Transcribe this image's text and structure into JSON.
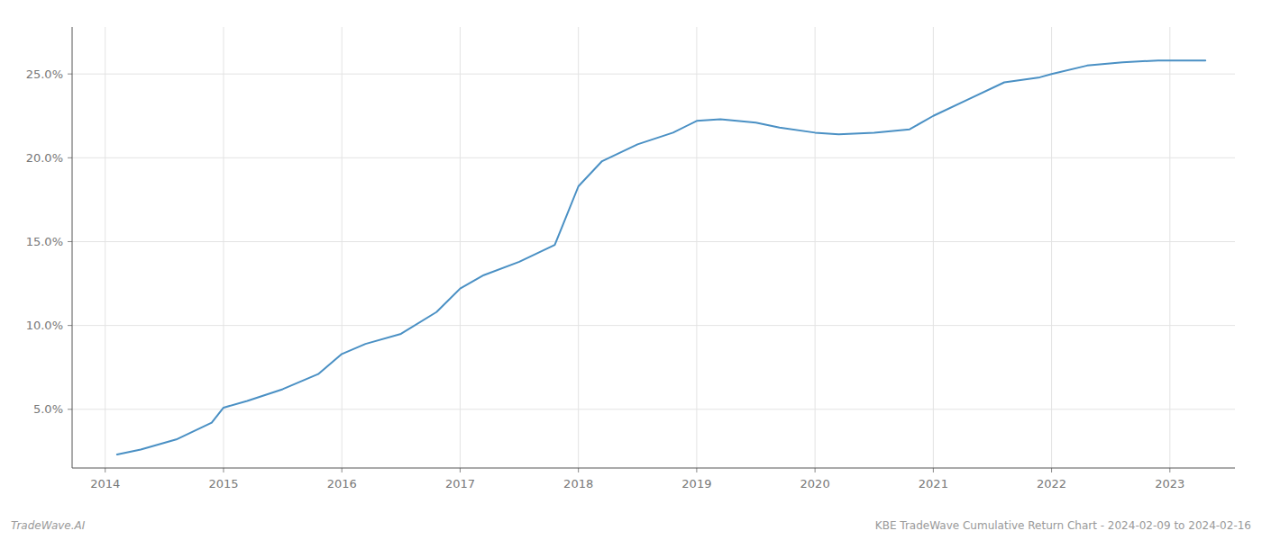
{
  "chart_data": {
    "type": "line",
    "x": [
      2014.1,
      2014.3,
      2014.6,
      2014.9,
      2015.0,
      2015.2,
      2015.5,
      2015.8,
      2016.0,
      2016.2,
      2016.5,
      2016.8,
      2017.0,
      2017.2,
      2017.5,
      2017.8,
      2018.0,
      2018.2,
      2018.5,
      2018.8,
      2019.0,
      2019.2,
      2019.5,
      2019.7,
      2020.0,
      2020.2,
      2020.5,
      2020.8,
      2021.0,
      2021.3,
      2021.6,
      2021.9,
      2022.0,
      2022.3,
      2022.6,
      2022.9,
      2023.0,
      2023.3
    ],
    "values": [
      2.3,
      2.6,
      3.2,
      4.2,
      5.1,
      5.5,
      6.2,
      7.1,
      8.3,
      8.9,
      9.5,
      10.8,
      12.2,
      13.0,
      13.8,
      14.8,
      18.3,
      19.8,
      20.8,
      21.5,
      22.2,
      22.3,
      22.1,
      21.8,
      21.5,
      21.4,
      21.5,
      21.7,
      22.5,
      23.5,
      24.5,
      24.8,
      25.0,
      25.5,
      25.7,
      25.8,
      25.8,
      25.8
    ],
    "color": "#4a90c4",
    "xlim": [
      2013.72,
      2023.55
    ],
    "xticks": [
      2014,
      2015,
      2016,
      2017,
      2018,
      2019,
      2020,
      2021,
      2022,
      2023
    ],
    "ylim": [
      1.5,
      27.8
    ],
    "yticks": [
      {
        "value": 5.0,
        "label": "5.0%"
      },
      {
        "value": 10.0,
        "label": "10.0%"
      },
      {
        "value": 15.0,
        "label": "15.0%"
      },
      {
        "value": 20.0,
        "label": "20.0%"
      },
      {
        "value": 25.0,
        "label": "25.0%"
      }
    ],
    "grid": true,
    "annotations": [
      "TradeWave.AI",
      "KBE TradeWave Cumulative Return Chart - 2024-02-09 to 2024-02-16"
    ]
  }
}
